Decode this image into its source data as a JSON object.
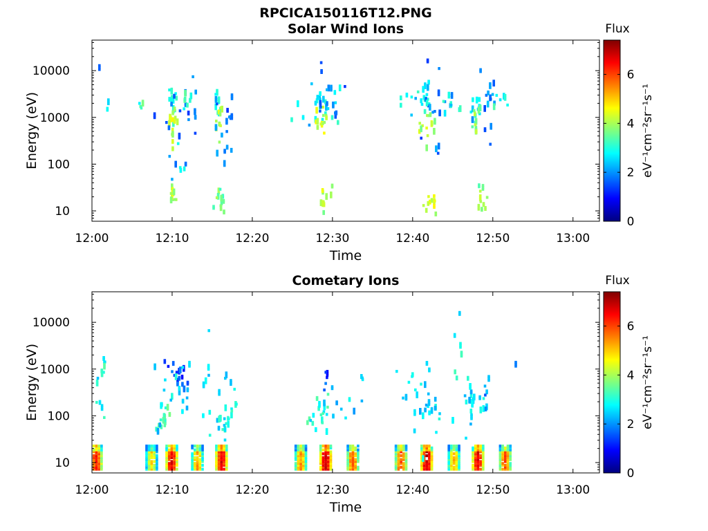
{
  "figure_title": "RPCICA150116T12.PNG",
  "colormap": [
    "#00007f",
    "#0000ff",
    "#007fff",
    "#00ffff",
    "#7fff7f",
    "#ffff00",
    "#ff7f00",
    "#ff0000",
    "#7f0000"
  ],
  "chart_data": [
    {
      "type": "heatmap",
      "title": "Solar Wind Ions",
      "xlabel": "Time",
      "ylabel": "Energy (eV)",
      "x_ticks": [
        "12:00",
        "12:10",
        "12:20",
        "12:30",
        "12:40",
        "12:50",
        "13:00"
      ],
      "x_tick_minutes": [
        0,
        10,
        20,
        30,
        40,
        50,
        60
      ],
      "xlim_minutes": [
        0,
        63.3
      ],
      "y_scale": "log",
      "ylim": [
        6,
        45000
      ],
      "y_ticks": [
        "10",
        "100",
        "1000",
        "10000"
      ],
      "y_tick_values": [
        10,
        100,
        1000,
        10000
      ],
      "colorbar": {
        "title": "Flux",
        "label": "eV⁻¹cm⁻²sr⁻¹s⁻¹",
        "range": [
          0,
          7.4
        ],
        "ticks": [
          "0",
          "2",
          "4",
          "6"
        ],
        "tick_values": [
          0,
          2,
          4,
          6
        ]
      },
      "clusters": [
        {
          "t": 9.9,
          "e": 2000,
          "spread_t": 0.35,
          "spread_e": 1.7,
          "n": 12,
          "v": 3.0
        },
        {
          "t": 10.0,
          "e": 700,
          "spread_t": 0.25,
          "spread_e": 1.6,
          "n": 14,
          "v": 4.2
        },
        {
          "t": 10.4,
          "e": 1200,
          "spread_t": 1.6,
          "spread_e": 3.5,
          "n": 18,
          "v": 1.8
        },
        {
          "t": 11.8,
          "e": 1900,
          "spread_t": 0.5,
          "spread_e": 1.2,
          "n": 7,
          "v": 3.2
        },
        {
          "t": 10.0,
          "e": 18,
          "spread_t": 0.3,
          "spread_e": 1.4,
          "n": 10,
          "v": 4.2
        },
        {
          "t": 10.4,
          "e": 120,
          "spread_t": 0.5,
          "spread_e": 2.2,
          "n": 6,
          "v": 2.6
        },
        {
          "t": 15.6,
          "e": 2000,
          "spread_t": 0.2,
          "spread_e": 1.5,
          "n": 8,
          "v": 3.0
        },
        {
          "t": 15.7,
          "e": 750,
          "spread_t": 0.25,
          "spread_e": 1.5,
          "n": 10,
          "v": 4.0
        },
        {
          "t": 16.3,
          "e": 600,
          "spread_t": 0.9,
          "spread_e": 3.0,
          "n": 16,
          "v": 1.7
        },
        {
          "t": 16.0,
          "e": 16,
          "spread_t": 0.45,
          "spread_e": 1.5,
          "n": 12,
          "v": 3.6
        },
        {
          "t": 28.2,
          "e": 2100,
          "spread_t": 0.45,
          "spread_e": 1.5,
          "n": 14,
          "v": 2.8
        },
        {
          "t": 28.6,
          "e": 800,
          "spread_t": 0.4,
          "spread_e": 1.5,
          "n": 14,
          "v": 4.3
        },
        {
          "t": 29.4,
          "e": 1500,
          "spread_t": 1.2,
          "spread_e": 3.0,
          "n": 16,
          "v": 1.8
        },
        {
          "t": 29.0,
          "e": 18,
          "spread_t": 0.4,
          "spread_e": 1.4,
          "n": 10,
          "v": 4.1
        },
        {
          "t": 31.0,
          "e": 1900,
          "spread_t": 1.2,
          "spread_e": 1.6,
          "n": 6,
          "v": 2.8
        },
        {
          "t": 41.4,
          "e": 2100,
          "spread_t": 0.5,
          "spread_e": 1.5,
          "n": 14,
          "v": 2.8
        },
        {
          "t": 41.8,
          "e": 700,
          "spread_t": 0.5,
          "spread_e": 1.6,
          "n": 14,
          "v": 4.0
        },
        {
          "t": 42.4,
          "e": 1300,
          "spread_t": 1.2,
          "spread_e": 3.0,
          "n": 18,
          "v": 1.8
        },
        {
          "t": 42.0,
          "e": 16,
          "spread_t": 0.5,
          "spread_e": 1.4,
          "n": 12,
          "v": 4.2
        },
        {
          "t": 44.5,
          "e": 1900,
          "spread_t": 1.4,
          "spread_e": 1.6,
          "n": 8,
          "v": 2.8
        },
        {
          "t": 47.6,
          "e": 2100,
          "spread_t": 0.5,
          "spread_e": 1.6,
          "n": 12,
          "v": 2.6
        },
        {
          "t": 47.8,
          "e": 700,
          "spread_t": 0.3,
          "spread_e": 1.6,
          "n": 10,
          "v": 3.8
        },
        {
          "t": 48.8,
          "e": 1200,
          "spread_t": 1.0,
          "spread_e": 3.0,
          "n": 14,
          "v": 1.8
        },
        {
          "t": 48.4,
          "e": 18,
          "spread_t": 0.35,
          "spread_e": 1.4,
          "n": 10,
          "v": 3.8
        },
        {
          "t": 50.6,
          "e": 2000,
          "spread_t": 0.8,
          "spread_e": 1.3,
          "n": 6,
          "v": 3.0
        },
        {
          "t": 38.5,
          "e": 2100,
          "spread_t": 0.5,
          "spread_e": 1.4,
          "n": 4,
          "v": 3.0
        },
        {
          "t": 25.9,
          "e": 2000,
          "spread_t": 0.5,
          "spread_e": 1.4,
          "n": 3,
          "v": 3.0
        },
        {
          "t": 5.8,
          "e": 1900,
          "spread_t": 0.3,
          "spread_e": 1.2,
          "n": 4,
          "v": 3.2
        },
        {
          "t": 1.6,
          "e": 1900,
          "spread_t": 0.3,
          "spread_e": 1.2,
          "n": 2,
          "v": 2.8
        },
        {
          "t": 0.8,
          "e": 10000,
          "spread_t": 0.2,
          "spread_e": 1.1,
          "n": 1,
          "v": 2.0
        }
      ]
    },
    {
      "type": "heatmap",
      "title": "Cometary Ions",
      "xlabel": "Time",
      "ylabel": "Energy (eV)",
      "x_ticks": [
        "12:00",
        "12:10",
        "12:20",
        "12:30",
        "12:40",
        "12:50",
        "13:00"
      ],
      "x_tick_minutes": [
        0,
        10,
        20,
        30,
        40,
        50,
        60
      ],
      "xlim_minutes": [
        0,
        63.3
      ],
      "y_scale": "log",
      "ylim": [
        6,
        45000
      ],
      "y_ticks": [
        "10",
        "100",
        "1000",
        "10000"
      ],
      "y_tick_values": [
        10,
        100,
        1000,
        10000
      ],
      "colorbar": {
        "title": "Flux",
        "label": "eV⁻¹cm⁻²sr⁻¹s⁻¹",
        "range": [
          0,
          7.4
        ],
        "ticks": [
          "0",
          "2",
          "4",
          "6"
        ],
        "tick_values": [
          0,
          2,
          4,
          6
        ]
      },
      "bursts": [
        {
          "t": 0.4,
          "v": 6.3
        },
        {
          "t": 7.3,
          "v": 4.8
        },
        {
          "t": 9.8,
          "v": 6.6
        },
        {
          "t": 13.0,
          "v": 5.2
        },
        {
          "t": 16.0,
          "v": 6.6
        },
        {
          "t": 25.9,
          "v": 5.4
        },
        {
          "t": 29.0,
          "v": 6.9
        },
        {
          "t": 32.4,
          "v": 5.8
        },
        {
          "t": 38.4,
          "v": 5.9
        },
        {
          "t": 41.6,
          "v": 6.9
        },
        {
          "t": 45.0,
          "v": 5.3
        },
        {
          "t": 48.0,
          "v": 6.6
        },
        {
          "t": 51.4,
          "v": 5.8
        }
      ],
      "clusters": [
        {
          "t": 0.9,
          "e": 300,
          "spread_t": 0.5,
          "spread_e": 2.5,
          "n": 10,
          "v": 2.8
        },
        {
          "t": 1.3,
          "e": 1300,
          "spread_t": 0.3,
          "spread_e": 1.3,
          "n": 3,
          "v": 3.0
        },
        {
          "t": 9.0,
          "e": 90,
          "spread_t": 0.5,
          "spread_e": 1.6,
          "n": 16,
          "v": 3.2
        },
        {
          "t": 10.5,
          "e": 700,
          "spread_t": 0.6,
          "spread_e": 1.5,
          "n": 16,
          "v": 1.4
        },
        {
          "t": 10.5,
          "e": 250,
          "spread_t": 1.5,
          "spread_e": 2.5,
          "n": 18,
          "v": 2.6
        },
        {
          "t": 14.4,
          "e": 600,
          "spread_t": 0.6,
          "spread_e": 2.5,
          "n": 5,
          "v": 2.6
        },
        {
          "t": 16.2,
          "e": 100,
          "spread_t": 0.7,
          "spread_e": 1.8,
          "n": 22,
          "v": 2.8
        },
        {
          "t": 17.0,
          "e": 400,
          "spread_t": 0.5,
          "spread_e": 2.0,
          "n": 5,
          "v": 2.6
        },
        {
          "t": 28.3,
          "e": 110,
          "spread_t": 0.6,
          "spread_e": 1.8,
          "n": 18,
          "v": 3.0
        },
        {
          "t": 29.1,
          "e": 750,
          "spread_t": 0.2,
          "spread_e": 1.3,
          "n": 5,
          "v": 1.4
        },
        {
          "t": 30.8,
          "e": 180,
          "spread_t": 1.3,
          "spread_e": 1.6,
          "n": 10,
          "v": 2.4
        },
        {
          "t": 33.5,
          "e": 700,
          "spread_t": 0.3,
          "spread_e": 1.2,
          "n": 3,
          "v": 2.8
        },
        {
          "t": 41.8,
          "e": 150,
          "spread_t": 0.8,
          "spread_e": 2.0,
          "n": 22,
          "v": 2.6
        },
        {
          "t": 40.0,
          "e": 300,
          "spread_t": 1.4,
          "spread_e": 2.5,
          "n": 8,
          "v": 2.6
        },
        {
          "t": 45.8,
          "e": 1800,
          "spread_t": 0.4,
          "spread_e": 2.4,
          "n": 6,
          "v": 2.8
        },
        {
          "t": 47.5,
          "e": 150,
          "spread_t": 0.9,
          "spread_e": 2.0,
          "n": 20,
          "v": 2.6
        },
        {
          "t": 49.0,
          "e": 350,
          "spread_t": 0.4,
          "spread_e": 1.5,
          "n": 6,
          "v": 2.0
        },
        {
          "t": 52.8,
          "e": 1000,
          "spread_t": 0.2,
          "spread_e": 1.1,
          "n": 1,
          "v": 2.2
        }
      ]
    }
  ]
}
